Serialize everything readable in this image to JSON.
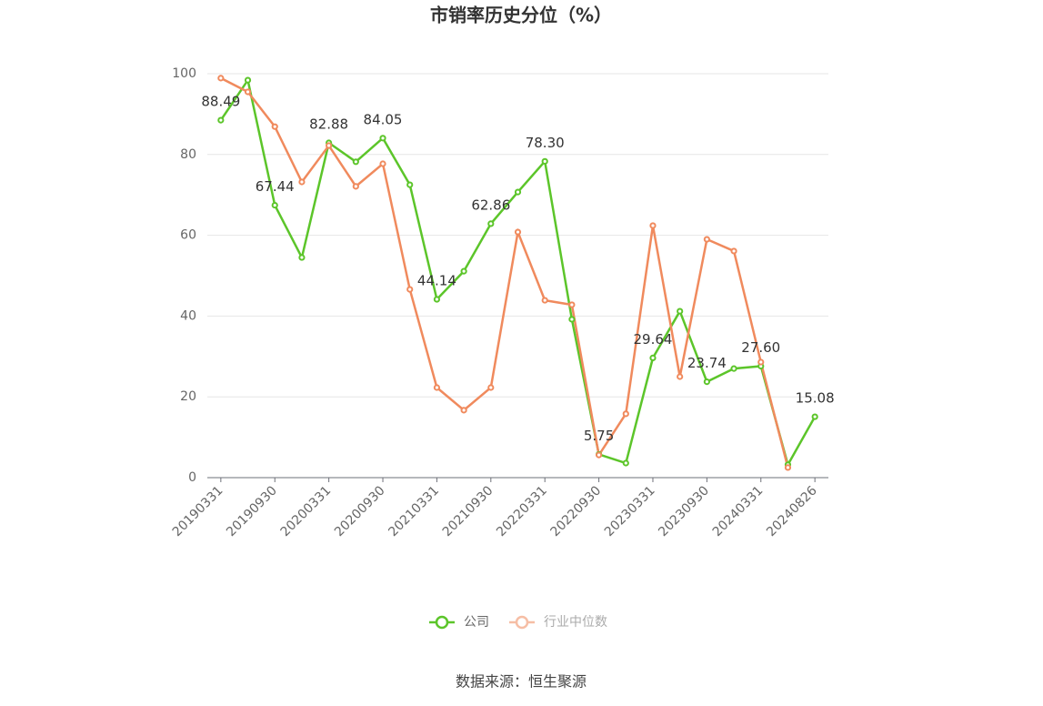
{
  "chart_data": {
    "type": "line",
    "title": "市销率历史分位（%）",
    "categories": [
      "20190331",
      null,
      "20190930",
      null,
      "20200331",
      null,
      "20200930",
      null,
      "20210331",
      null,
      "20210930",
      null,
      "20220331",
      null,
      "20220930",
      null,
      "20230331",
      null,
      "20230930",
      null,
      "20240331",
      null,
      "20240826"
    ],
    "series": [
      {
        "name": "公司",
        "color": "#5cc52a",
        "values": [
          88.49,
          98.4,
          67.44,
          54.5,
          82.88,
          78.2,
          84.05,
          72.5,
          44.14,
          51.1,
          62.86,
          70.7,
          78.3,
          39.2,
          5.75,
          3.6,
          29.64,
          41.2,
          23.74,
          27.0,
          27.6,
          3.2,
          15.08
        ],
        "value_labels": [
          "88.49",
          null,
          "67.44",
          null,
          "82.88",
          null,
          "84.05",
          null,
          "44.14",
          null,
          "62.86",
          null,
          "78.30",
          null,
          "5.75",
          null,
          "29.64",
          null,
          "23.74",
          null,
          "27.60",
          null,
          "15.08"
        ]
      },
      {
        "name": "行业中位数",
        "color": "#f08a5d",
        "values": [
          98.9,
          95.5,
          86.9,
          73.2,
          82.2,
          72.1,
          77.7,
          46.6,
          22.3,
          16.7,
          22.3,
          60.8,
          43.9,
          42.8,
          5.6,
          15.8,
          62.4,
          25.0,
          59.0,
          56.1,
          28.6,
          2.5,
          null
        ]
      }
    ],
    "ylim": [
      0,
      100
    ],
    "yticks": [
      0,
      20,
      40,
      60,
      80,
      100
    ],
    "grid": true,
    "legend": "bottom",
    "source": "数据来源：恒生聚源"
  }
}
